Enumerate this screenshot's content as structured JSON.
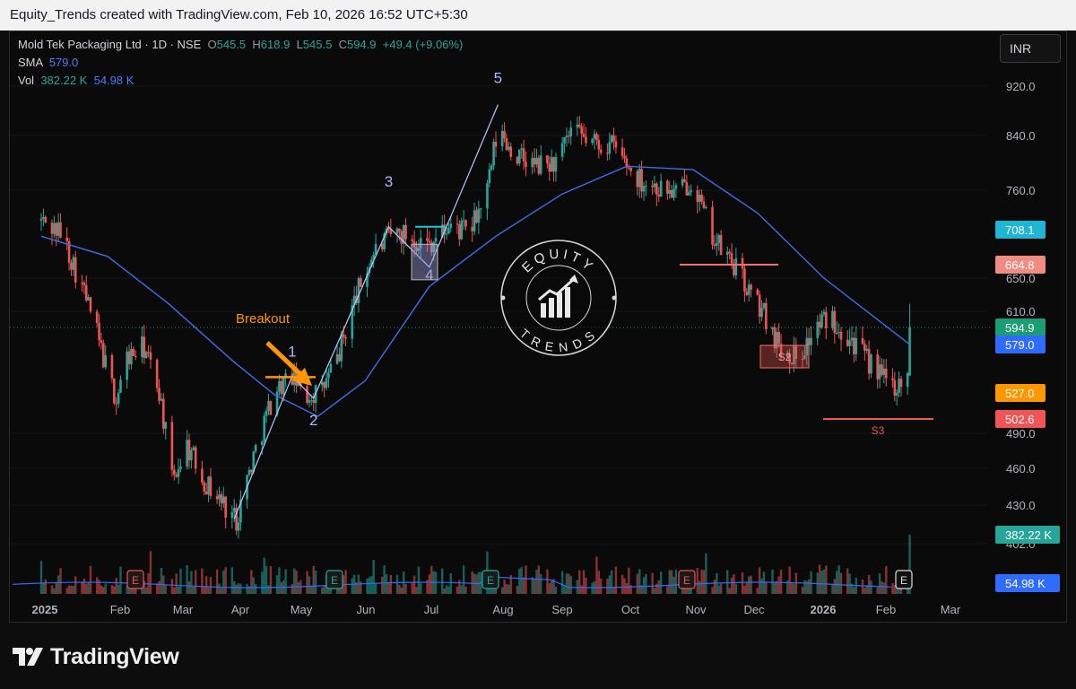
{
  "header": {
    "attribution": "Equity_Trends created with TradingView.com, Feb 10, 2026 16:52 UTC+5:30"
  },
  "legend": {
    "symbol": "Mold Tek Packaging Ltd · 1D · NSE",
    "open_key": "O",
    "open": "545.5",
    "high_key": "H",
    "high": "618.9",
    "low_key": "L",
    "low": "545.5",
    "close_key": "C",
    "close": "594.9",
    "change": "+49.4 (+9.06%)",
    "sma_label": "SMA",
    "sma_value": "579.0",
    "vol_label": "Vol",
    "vol_value": "382.22 K",
    "vol_ma_value": "54.98 K"
  },
  "currency_button": "INR",
  "footer": {
    "brand": "TradingView"
  },
  "watermark": {
    "top_text": "EQUITY",
    "bottom_text": "TRENDS"
  },
  "colors": {
    "up": "#26a69a",
    "down": "#ef5350",
    "sma": "#3f6ee8",
    "orange": "#ff9800",
    "wave": "#b8c8ff",
    "resistance": "#f07070"
  },
  "chart_data": {
    "type": "candlestick",
    "symbol": "Mold Tek Packaging Ltd",
    "interval": "1D",
    "exchange": "NSE",
    "y_ticks": [
      920.0,
      840.0,
      760.0,
      650.0,
      610.0,
      490.0,
      460.0,
      430.0,
      402.0
    ],
    "x_ticks": [
      "2025",
      "Feb",
      "Mar",
      "Apr",
      "May",
      "Jun",
      "Jul",
      "Aug",
      "Sep",
      "Oct",
      "Nov",
      "Dec",
      "2026",
      "Feb",
      "Mar"
    ],
    "price_labels": [
      {
        "text": "708.1",
        "color": "#1fb5d4"
      },
      {
        "text": "664.8",
        "color": "#f28b82"
      },
      {
        "text": "594.9",
        "color": "#1b9e74"
      },
      {
        "text": "579.0",
        "color": "#2f6bff"
      },
      {
        "text": "527.0",
        "color": "#ff9800"
      },
      {
        "text": "502.6",
        "color": "#f05454"
      },
      {
        "text": "382.22 K",
        "color": "#26a69a"
      },
      {
        "text": "54.98 K",
        "color": "#2f6bff"
      }
    ],
    "close_path": [
      [
        "2025-01-01",
        720
      ],
      [
        "2025-01-10",
        705
      ],
      [
        "2025-01-20",
        640
      ],
      [
        "2025-01-28",
        580
      ],
      [
        "2025-02-05",
        520
      ],
      [
        "2025-02-10",
        565
      ],
      [
        "2025-02-18",
        575
      ],
      [
        "2025-02-25",
        530
      ],
      [
        "2025-03-03",
        450
      ],
      [
        "2025-03-10",
        480
      ],
      [
        "2025-03-18",
        450
      ],
      [
        "2025-03-25",
        435
      ],
      [
        "2025-04-02",
        420
      ],
      [
        "2025-04-10",
        470
      ],
      [
        "2025-04-20",
        530
      ],
      [
        "2025-04-28",
        545
      ],
      [
        "2025-05-05",
        525
      ],
      [
        "2025-05-12",
        530
      ],
      [
        "2025-05-20",
        570
      ],
      [
        "2025-05-28",
        630
      ],
      [
        "2025-06-05",
        680
      ],
      [
        "2025-06-15",
        705
      ],
      [
        "2025-06-22",
        700
      ],
      [
        "2025-06-30",
        690
      ],
      [
        "2025-07-10",
        712
      ],
      [
        "2025-07-20",
        705
      ],
      [
        "2025-07-28",
        760
      ],
      [
        "2025-08-02",
        850
      ],
      [
        "2025-08-10",
        810
      ],
      [
        "2025-08-20",
        795
      ],
      [
        "2025-08-30",
        800
      ],
      [
        "2025-09-05",
        845
      ],
      [
        "2025-09-15",
        830
      ],
      [
        "2025-09-25",
        825
      ],
      [
        "2025-10-05",
        780
      ],
      [
        "2025-10-15",
        765
      ],
      [
        "2025-10-25",
        755
      ],
      [
        "2025-11-01",
        780
      ],
      [
        "2025-11-05",
        735
      ],
      [
        "2025-11-12",
        690
      ],
      [
        "2025-11-20",
        665
      ],
      [
        "2025-11-28",
        630
      ],
      [
        "2025-12-05",
        605
      ],
      [
        "2025-12-12",
        575
      ],
      [
        "2025-12-20",
        565
      ],
      [
        "2025-12-28",
        595
      ],
      [
        "2026-01-05",
        605
      ],
      [
        "2026-01-12",
        590
      ],
      [
        "2026-01-20",
        565
      ],
      [
        "2026-01-28",
        545
      ],
      [
        "2026-02-03",
        535
      ],
      [
        "2026-02-09",
        545
      ],
      [
        "2026-02-10",
        594.9
      ]
    ],
    "sma": {
      "name": "SMA",
      "last": 579.0,
      "values": [
        [
          "2025-01-01",
          700
        ],
        [
          "2025-02-01",
          675
        ],
        [
          "2025-03-01",
          620
        ],
        [
          "2025-04-01",
          560
        ],
        [
          "2025-04-20",
          525
        ],
        [
          "2025-05-10",
          505
        ],
        [
          "2025-06-01",
          540
        ],
        [
          "2025-07-01",
          640
        ],
        [
          "2025-08-01",
          700
        ],
        [
          "2025-09-01",
          755
        ],
        [
          "2025-10-01",
          795
        ],
        [
          "2025-11-01",
          790
        ],
        [
          "2025-12-01",
          730
        ],
        [
          "2026-01-01",
          650
        ],
        [
          "2026-02-10",
          579
        ]
      ]
    },
    "volume": {
      "last": "382.22 K",
      "ma_last": "54.98 K"
    },
    "annotations": [
      {
        "type": "text",
        "text": "Breakout",
        "color": "#ff9800"
      },
      {
        "type": "wave_label",
        "text": "1"
      },
      {
        "type": "wave_label",
        "text": "2"
      },
      {
        "type": "wave_label",
        "text": "3"
      },
      {
        "type": "wave_label",
        "text": "4"
      },
      {
        "type": "wave_label",
        "text": "5"
      },
      {
        "type": "support_label",
        "text": "S2"
      },
      {
        "type": "support_label",
        "text": "S3"
      },
      {
        "type": "earnings_marker",
        "text": "E",
        "count": 5
      }
    ]
  }
}
